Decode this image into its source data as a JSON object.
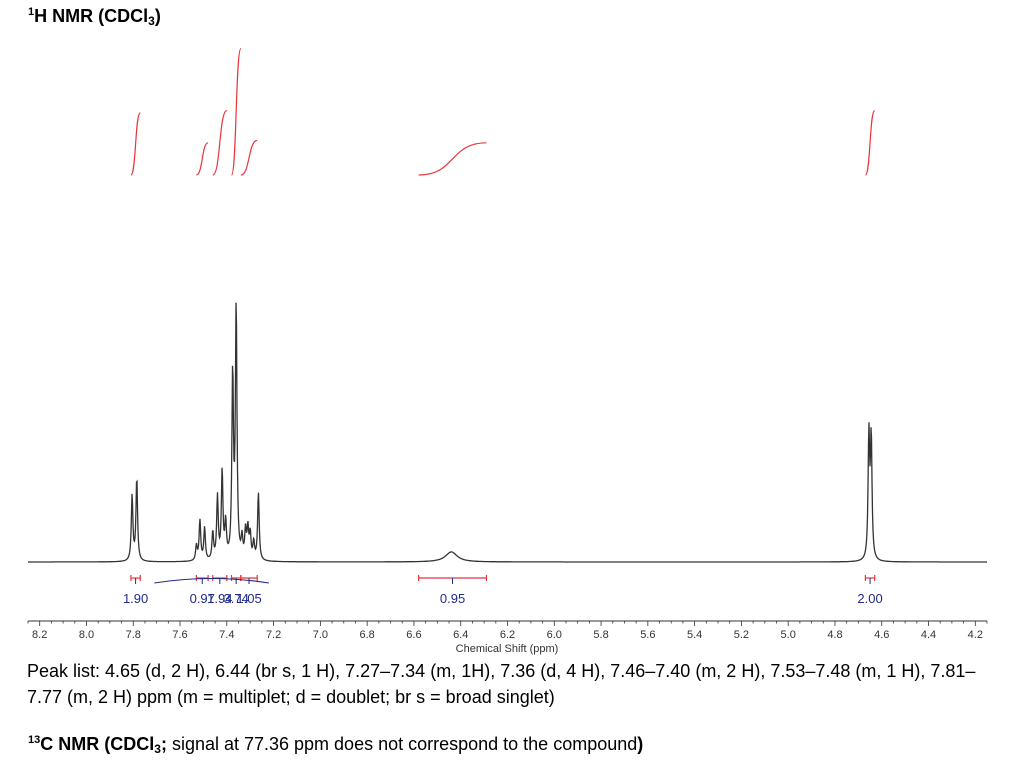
{
  "header": {
    "h1_iso": "1",
    "h1_main": "H NMR (CDCl",
    "h1_sub": "3",
    "h1_close": ")"
  },
  "colors": {
    "spectrum": "#333333",
    "integral_curve": "#e8343a",
    "integral_label": "#1f2a8a",
    "integral_bracket": "#e8343a",
    "axis": "#333333"
  },
  "chart_data": {
    "type": "line",
    "xlabel": "Chemical Shift (ppm)",
    "xlim": [
      8.25,
      4.15
    ],
    "x_reversed": true,
    "grid": false,
    "x_ticks": [
      {
        "v": 8.2,
        "label": "8.2"
      },
      {
        "v": 8.0,
        "label": "8.0"
      },
      {
        "v": 7.8,
        "label": "7.8"
      },
      {
        "v": 7.6,
        "label": "7.6"
      },
      {
        "v": 7.4,
        "label": "7.4"
      },
      {
        "v": 7.2,
        "label": "7.2"
      },
      {
        "v": 7.0,
        "label": "7.0"
      },
      {
        "v": 6.8,
        "label": "6.8"
      },
      {
        "v": 6.6,
        "label": "6.6"
      },
      {
        "v": 6.4,
        "label": "6.4"
      },
      {
        "v": 6.2,
        "label": "6.2"
      },
      {
        "v": 6.0,
        "label": "6.0"
      },
      {
        "v": 5.8,
        "label": "5.8"
      },
      {
        "v": 5.6,
        "label": "5.6"
      },
      {
        "v": 5.4,
        "label": "5.4"
      },
      {
        "v": 5.2,
        "label": "5.2"
      },
      {
        "v": 5.0,
        "label": "5.0"
      },
      {
        "v": 4.8,
        "label": "4.8"
      },
      {
        "v": 4.6,
        "label": "4.6"
      },
      {
        "v": 4.4,
        "label": "4.4"
      },
      {
        "v": 4.2,
        "label": "4.2"
      }
    ],
    "peaks": [
      {
        "ppm": 7.805,
        "height": 0.26,
        "width": 0.004
      },
      {
        "ppm": 7.785,
        "height": 0.33,
        "width": 0.004
      },
      {
        "ppm": 7.53,
        "height": 0.06,
        "width": 0.004
      },
      {
        "ppm": 7.515,
        "height": 0.16,
        "width": 0.004
      },
      {
        "ppm": 7.495,
        "height": 0.13,
        "width": 0.004
      },
      {
        "ppm": 7.46,
        "height": 0.11,
        "width": 0.004
      },
      {
        "ppm": 7.44,
        "height": 0.25,
        "width": 0.004
      },
      {
        "ppm": 7.42,
        "height": 0.35,
        "width": 0.004
      },
      {
        "ppm": 7.405,
        "height": 0.14,
        "width": 0.004
      },
      {
        "ppm": 7.375,
        "height": 0.73,
        "width": 0.004
      },
      {
        "ppm": 7.36,
        "height": 1.0,
        "width": 0.004
      },
      {
        "ppm": 7.335,
        "height": 0.08,
        "width": 0.004
      },
      {
        "ppm": 7.32,
        "height": 0.11,
        "width": 0.004
      },
      {
        "ppm": 7.31,
        "height": 0.12,
        "width": 0.004
      },
      {
        "ppm": 7.3,
        "height": 0.1,
        "width": 0.004
      },
      {
        "ppm": 7.285,
        "height": 0.07,
        "width": 0.004
      },
      {
        "ppm": 7.265,
        "height": 0.27,
        "width": 0.004
      },
      {
        "ppm": 6.44,
        "height": 0.04,
        "width": 0.03
      },
      {
        "ppm": 4.655,
        "height": 0.49,
        "width": 0.004
      },
      {
        "ppm": 4.645,
        "height": 0.48,
        "width": 0.004
      }
    ],
    "integrals": [
      {
        "label": "1.90",
        "from": 7.81,
        "to": 7.77,
        "rise": 0.27
      },
      {
        "label": "0.97",
        "from": 7.53,
        "to": 7.48,
        "rise": 0.14
      },
      {
        "label": "1.94",
        "from": 7.46,
        "to": 7.4,
        "rise": 0.28
      },
      {
        "label": "3.74",
        "from": 7.38,
        "to": 7.34,
        "rise": 0.55
      },
      {
        "label": "1.05",
        "from": 7.34,
        "to": 7.27,
        "rise": 0.15
      },
      {
        "label": "0.95",
        "from": 6.58,
        "to": 6.29,
        "rise": 0.14
      },
      {
        "label": "2.00",
        "from": 4.67,
        "to": 4.63,
        "rise": 0.28
      }
    ]
  },
  "peak_list": "Peak list: 4.65 (d, 2 H), 6.44 (br s, 1 H), 7.27–7.34 (m, 1H), 7.36 (d, 4 H), 7.46–7.40 (m, 2 H), 7.53–7.48 (m, 1 H), 7.81–7.77 (m, 2 H) ppm (m = multiplet; d = doublet; br s = broad singlet)",
  "footer": {
    "c13_iso": "13",
    "c13_main": "C NMR (CDCl",
    "c13_sub": "3",
    "c13_semi": ";",
    "c13_rest": " signal at 77.36 ppm does not correspond to the compound",
    "c13_close": ")"
  }
}
